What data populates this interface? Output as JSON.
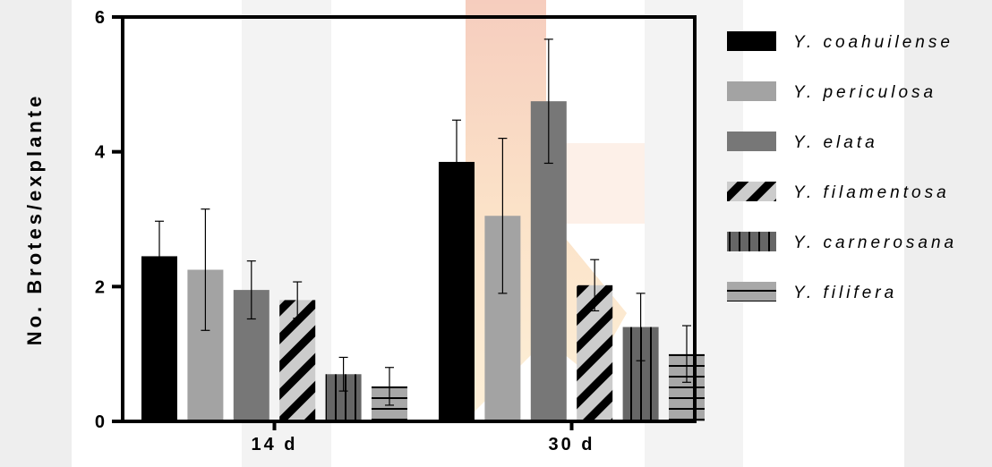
{
  "chart_data": {
    "type": "bar",
    "ylabel": "No. Brotes/explante",
    "ylim": [
      0,
      6
    ],
    "yticks": [
      0,
      2,
      4,
      6
    ],
    "categories": [
      "14 d",
      "30 d"
    ],
    "series": [
      {
        "name": "Y. coahuilense",
        "values": [
          2.45,
          3.85
        ],
        "errors": [
          0.52,
          0.62
        ],
        "color": "#000000",
        "pattern": "solid"
      },
      {
        "name": "Y. periculosa",
        "values": [
          2.25,
          3.05
        ],
        "errors": [
          0.9,
          1.15
        ],
        "color": "#a3a3a3",
        "pattern": "solid"
      },
      {
        "name": "Y. elata",
        "values": [
          1.95,
          4.75
        ],
        "errors": [
          0.43,
          0.92
        ],
        "color": "#777777",
        "pattern": "solid"
      },
      {
        "name": "Y. filamentosa",
        "values": [
          1.8,
          2.02
        ],
        "errors": [
          0.27,
          0.38
        ],
        "color": "#cccccc",
        "pattern": "diagonal-black"
      },
      {
        "name": "Y. carnerosana",
        "values": [
          0.7,
          1.4
        ],
        "errors": [
          0.25,
          0.5
        ],
        "color": "#666666",
        "pattern": "vertical-black"
      },
      {
        "name": "Y. filifera",
        "values": [
          0.52,
          1.0
        ],
        "errors": [
          0.28,
          0.42
        ],
        "color": "#a8a8a8",
        "pattern": "horizontal-black"
      }
    ],
    "grid": false,
    "legend_position": "right"
  }
}
